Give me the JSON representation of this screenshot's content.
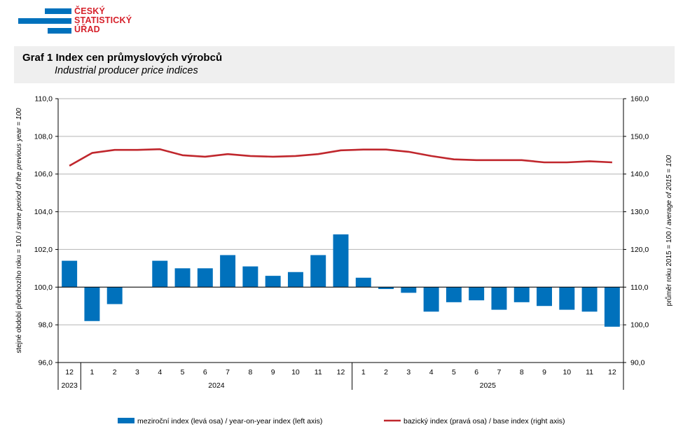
{
  "logo": {
    "lines": [
      "ČESKÝ",
      "STATISTICKÝ",
      "ÚŘAD"
    ],
    "colors": {
      "blue": "#0071bc",
      "red": "#d6202a"
    }
  },
  "header": {
    "title": "Graf 1 Index cen průmyslových výrobců",
    "subtitle": "Industrial producer price indices"
  },
  "chart_data": {
    "type": "bar+line",
    "categories": [
      "12",
      "1",
      "2",
      "3",
      "4",
      "5",
      "6",
      "7",
      "8",
      "9",
      "10",
      "11",
      "12",
      "1",
      "2",
      "3",
      "4",
      "5",
      "6",
      "7",
      "8",
      "9",
      "10",
      "11",
      "12"
    ],
    "years": [
      {
        "label": "2023",
        "span": 1
      },
      {
        "label": "2024",
        "span": 12
      },
      {
        "label": "2025",
        "span": 12
      }
    ],
    "left_axis": {
      "label_plain": "stejné období předchozího roku = 100 / ",
      "label_italic": "same period of  the previous year = 100",
      "ylim": [
        96,
        110
      ],
      "ticks": [
        "96,0",
        "98,0",
        "100,0",
        "102,0",
        "104,0",
        "106,0",
        "108,0",
        "110,0"
      ]
    },
    "right_axis": {
      "label_plain": "průměr roku 2015 = 100 / ",
      "label_italic": "average of 2015 = 100",
      "ylim": [
        90,
        160
      ],
      "ticks": [
        "90,0",
        "100,0",
        "110,0",
        "120,0",
        "130,0",
        "140,0",
        "150,0",
        "160,0"
      ]
    },
    "series": [
      {
        "name": "meziroční index (levá osa) / year-on-year index (left axis)",
        "kind": "bar",
        "axis": "left",
        "color": "#0071bc",
        "baseline": 100,
        "values": [
          101.4,
          98.2,
          99.1,
          100.0,
          101.4,
          101.0,
          101.0,
          101.7,
          101.1,
          100.6,
          100.8,
          101.7,
          102.8,
          100.5,
          99.9,
          99.7,
          98.7,
          99.2,
          99.3,
          98.8,
          99.2,
          99.0,
          98.8,
          98.7,
          97.9
        ]
      },
      {
        "name": "bazický index (pravá osa) / base index (right axis)",
        "kind": "line",
        "axis": "right",
        "color": "#c0272d",
        "values": [
          142.2,
          145.6,
          146.4,
          146.4,
          146.6,
          145.0,
          144.6,
          145.3,
          144.8,
          144.6,
          144.8,
          145.3,
          146.3,
          146.5,
          146.5,
          145.9,
          144.8,
          143.9,
          143.7,
          143.7,
          143.7,
          143.1,
          143.1,
          143.4,
          143.1
        ]
      }
    ]
  }
}
